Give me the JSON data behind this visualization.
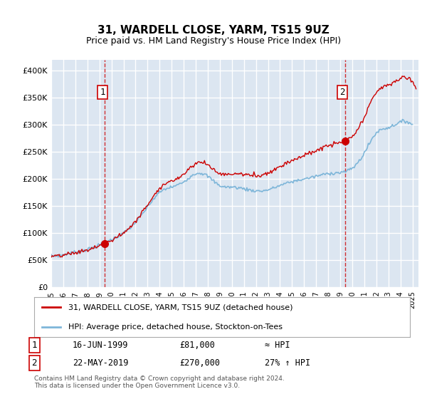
{
  "title": "31, WARDELL CLOSE, YARM, TS15 9UZ",
  "subtitle": "Price paid vs. HM Land Registry's House Price Index (HPI)",
  "ylabel_ticks": [
    "£0",
    "£50K",
    "£100K",
    "£150K",
    "£200K",
    "£250K",
    "£300K",
    "£350K",
    "£400K"
  ],
  "ytick_values": [
    0,
    50000,
    100000,
    150000,
    200000,
    250000,
    300000,
    350000,
    400000
  ],
  "ylim": [
    0,
    420000
  ],
  "xlim_start": 1995.0,
  "xlim_end": 2025.5,
  "background_color": "#dce6f1",
  "plot_bg_color": "#dce6f1",
  "grid_color": "#ffffff",
  "hpi_color": "#7eb6d9",
  "price_color": "#cc0000",
  "sale1_date": 1999.46,
  "sale1_price": 81000,
  "sale2_date": 2019.39,
  "sale2_price": 270000,
  "legend_label1": "31, WARDELL CLOSE, YARM, TS15 9UZ (detached house)",
  "legend_label2": "HPI: Average price, detached house, Stockton-on-Tees",
  "annotation1": "1",
  "annotation2": "2",
  "ann1_text": "16-JUN-1999",
  "ann1_price": "£81,000",
  "ann1_hpi": "≈ HPI",
  "ann2_text": "22-MAY-2019",
  "ann2_price": "£270,000",
  "ann2_hpi": "27% ↑ HPI",
  "footer": "Contains HM Land Registry data © Crown copyright and database right 2024.\nThis data is licensed under the Open Government Licence v3.0.",
  "xtick_years": [
    1995,
    1996,
    1997,
    1998,
    1999,
    2000,
    2001,
    2002,
    2003,
    2004,
    2005,
    2006,
    2007,
    2008,
    2009,
    2010,
    2011,
    2012,
    2013,
    2014,
    2015,
    2016,
    2017,
    2018,
    2019,
    2020,
    2021,
    2022,
    2023,
    2024,
    2025
  ]
}
